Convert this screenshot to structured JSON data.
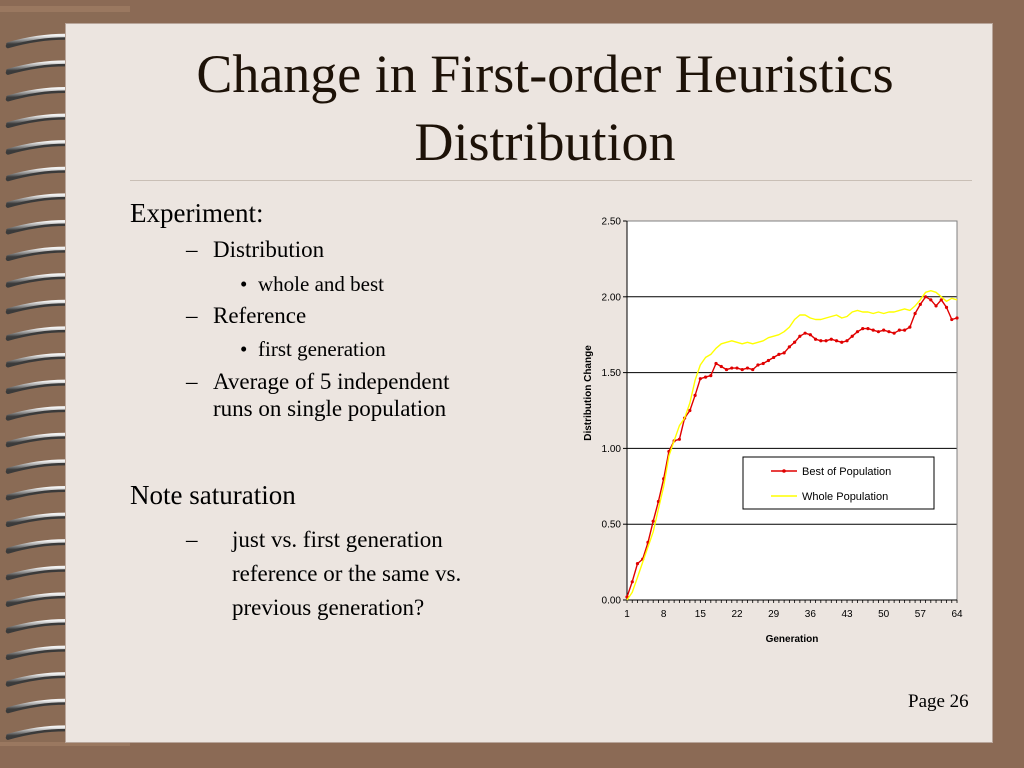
{
  "slide": {
    "title_line1": "Change in First-order Heuristics",
    "title_line2": "Distribution",
    "bullets": {
      "experiment": "Experiment:",
      "distribution": "Distribution",
      "bullet_char": "•",
      "dash_char": "–",
      "whole_and_best": "whole and best",
      "reference": "Reference",
      "first_generation": "first generation",
      "average_line1": "Average of 5 independent",
      "average_line2": "runs on single population",
      "note_saturation": "Note saturation",
      "just_line1": "just vs. first generation",
      "just_line2": "reference or the same vs.",
      "just_line3": "previous generation?"
    },
    "page_number": "Page 26"
  },
  "chart_data": {
    "type": "line",
    "xlabel": "Generation",
    "ylabel": "Distribution Change",
    "x_ticks": [
      "1",
      "8",
      "15",
      "22",
      "29",
      "36",
      "43",
      "50",
      "57",
      "64"
    ],
    "y_ticks": [
      "0.00",
      "0.50",
      "1.00",
      "1.50",
      "2.00",
      "2.50"
    ],
    "xlim": [
      1,
      64
    ],
    "ylim": [
      0,
      2.5
    ],
    "grid": "horizontal",
    "legend_position": "center-right",
    "series": [
      {
        "name": "Best of Population",
        "color": "#e00000",
        "marker": "dot",
        "values": [
          0.02,
          0.12,
          0.24,
          0.27,
          0.38,
          0.52,
          0.65,
          0.8,
          0.98,
          1.05,
          1.06,
          1.2,
          1.25,
          1.35,
          1.46,
          1.47,
          1.48,
          1.56,
          1.54,
          1.52,
          1.53,
          1.53,
          1.52,
          1.53,
          1.52,
          1.55,
          1.56,
          1.58,
          1.6,
          1.62,
          1.63,
          1.67,
          1.7,
          1.74,
          1.76,
          1.75,
          1.72,
          1.71,
          1.71,
          1.72,
          1.71,
          1.7,
          1.71,
          1.74,
          1.77,
          1.79,
          1.79,
          1.78,
          1.77,
          1.78,
          1.77,
          1.76,
          1.78,
          1.78,
          1.8,
          1.89,
          1.95,
          2.0,
          1.98,
          1.94,
          1.98,
          1.93,
          1.85,
          1.86
        ]
      },
      {
        "name": "Whole Population",
        "color": "#ffff00",
        "marker": "none",
        "values": [
          0.0,
          0.05,
          0.15,
          0.25,
          0.35,
          0.45,
          0.6,
          0.75,
          0.95,
          1.05,
          1.15,
          1.2,
          1.3,
          1.45,
          1.55,
          1.6,
          1.62,
          1.66,
          1.69,
          1.7,
          1.71,
          1.7,
          1.69,
          1.7,
          1.69,
          1.7,
          1.71,
          1.73,
          1.74,
          1.75,
          1.77,
          1.8,
          1.85,
          1.88,
          1.88,
          1.86,
          1.85,
          1.85,
          1.86,
          1.87,
          1.88,
          1.86,
          1.87,
          1.9,
          1.91,
          1.9,
          1.9,
          1.89,
          1.9,
          1.89,
          1.9,
          1.9,
          1.91,
          1.92,
          1.91,
          1.94,
          1.98,
          2.03,
          2.04,
          2.03,
          2.0,
          1.97,
          1.99,
          1.98
        ]
      }
    ]
  }
}
